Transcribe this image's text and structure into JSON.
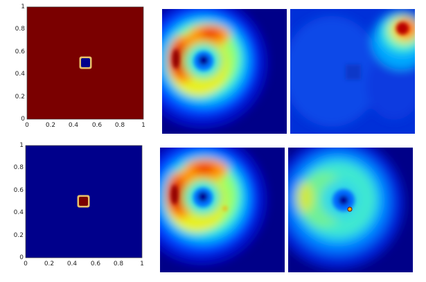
{
  "plots": [
    {
      "name": "top-left-indicator",
      "field_color": "#7a0000",
      "square_color": "#00008b",
      "border_color": "#e7c06a",
      "y_ticks": [
        "1",
        "0.8",
        "0.6",
        "0.4",
        "0.2",
        "0"
      ],
      "x_ticks": [
        "0",
        "0.2",
        "0.4",
        "0.6",
        "0.8",
        "1"
      ]
    },
    {
      "name": "bottom-left-indicator",
      "field_color": "#00008b",
      "square_color": "#7a0000",
      "border_color": "#e7c06a",
      "y_ticks": [
        "1",
        "0.8",
        "0.6",
        "0.4",
        "0.2",
        "0"
      ],
      "x_ticks": [
        "0",
        "0.2",
        "0.4",
        "0.6",
        "0.8",
        "1"
      ]
    }
  ],
  "heatmaps": [
    {
      "name": "heatmap-top-middle"
    },
    {
      "name": "heatmap-top-right"
    },
    {
      "name": "heatmap-bottom-middle"
    },
    {
      "name": "heatmap-bottom-right"
    }
  ],
  "colormap": [
    "#00007f",
    "#0000ff",
    "#007fff",
    "#00ffff",
    "#7fff7f",
    "#ffff00",
    "#ff7f00",
    "#ff0000",
    "#7f0000"
  ]
}
